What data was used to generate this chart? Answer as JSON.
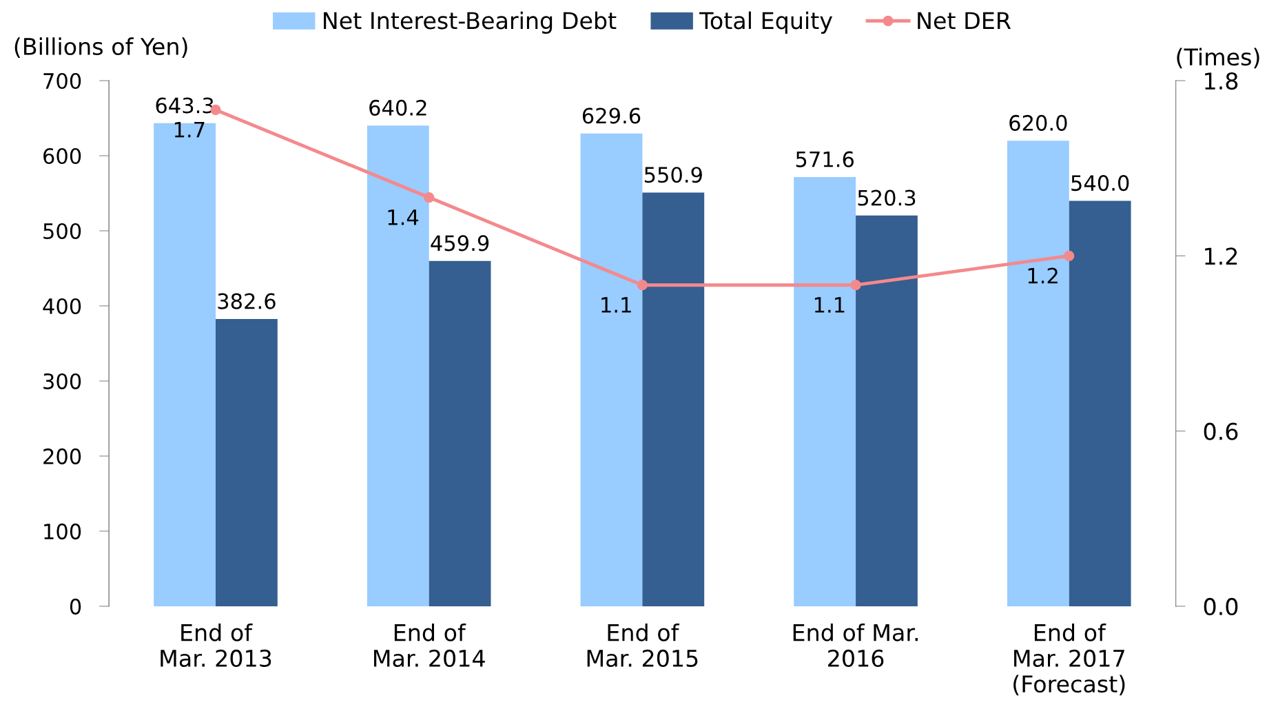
{
  "chart_data": {
    "type": "bar",
    "categories": [
      "End of\nMar. 2013",
      "End of\nMar. 2014",
      "End of\nMar. 2015",
      "End of Mar.\n2016",
      "End of\nMar. 2017\n(Forecast)"
    ],
    "series": [
      {
        "name": "Net Interest-Bearing Debt",
        "color": "#99ccff",
        "values": [
          643.3,
          640.2,
          629.6,
          571.6,
          620.0
        ],
        "value_labels": [
          "643.3",
          "640.2",
          "629.6",
          "571.6",
          "620.0"
        ]
      },
      {
        "name": "Total Equity",
        "color": "#355e91",
        "values": [
          382.6,
          459.9,
          550.9,
          520.3,
          540.0
        ],
        "value_labels": [
          "382.6",
          "459.9",
          "550.9",
          "520.3",
          "540.0"
        ]
      },
      {
        "name": "Net DER",
        "type": "line",
        "axis": "y2",
        "color": "#f4898c",
        "marker": "circle",
        "values": [
          1.7,
          1.4,
          1.1,
          1.1,
          1.2
        ],
        "value_labels": [
          "1.7",
          "1.4",
          "1.1",
          "1.1",
          "1.2"
        ]
      }
    ],
    "ylabel": "(Billions of Yen)",
    "y2label": "(Times)",
    "ylim": [
      0,
      700
    ],
    "yticks": [
      0,
      100,
      200,
      300,
      400,
      500,
      600,
      700
    ],
    "y2lim": [
      0,
      1.8
    ],
    "y2ticks": [
      {
        "value": 0,
        "label": "0.0"
      },
      {
        "value": 0.6,
        "label": "0.6"
      },
      {
        "value": 1.2,
        "label": "1.2"
      },
      {
        "value": 1.8,
        "label": "1.8"
      }
    ],
    "legend": "top",
    "grid": false
  }
}
